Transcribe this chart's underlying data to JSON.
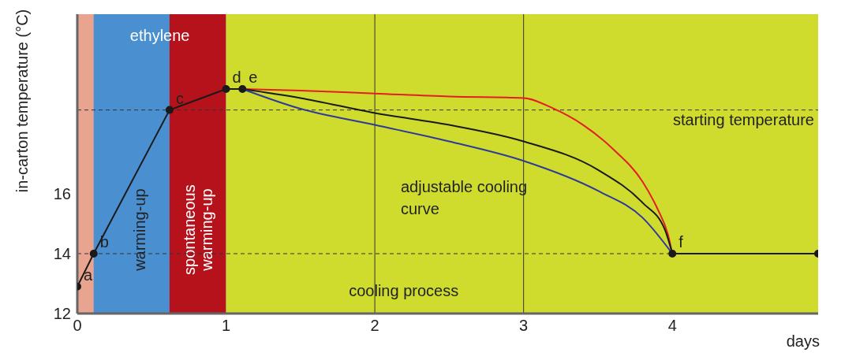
{
  "chart_data": {
    "type": "line",
    "xlabel": "days",
    "ylabel": "in-carton temperature (°C)",
    "xlim": [
      0,
      4.98
    ],
    "xticks": [
      0,
      1,
      2,
      3,
      4
    ],
    "ylim": [
      12,
      22
    ],
    "yticks": [
      12,
      14,
      16
    ],
    "series": [
      {
        "color": "#1a1a1a",
        "marker": "circle",
        "x": [
          0,
          0.11,
          0.62,
          1.0,
          1.11
        ],
        "values": [
          12.9,
          14.0,
          18.8,
          19.5,
          19.5
        ]
      },
      {
        "color": "#e31e24",
        "marker": "none",
        "x": [
          1.11,
          1.5,
          2,
          2.5,
          3,
          3.2,
          3.4,
          3.6,
          3.8,
          3.9,
          3.97,
          4.0
        ],
        "values": [
          19.5,
          19.45,
          19.35,
          19.25,
          19.2,
          18.85,
          18.3,
          17.5,
          16.4,
          15.5,
          14.65,
          14.0
        ]
      },
      {
        "color": "#1a1a1a",
        "marker": "none",
        "x": [
          1.11,
          1.5,
          2,
          2.5,
          3,
          3.5,
          3.8,
          3.95,
          4.0
        ],
        "values": [
          19.5,
          19.2,
          18.7,
          18.3,
          17.75,
          16.8,
          15.7,
          14.8,
          14.0
        ]
      },
      {
        "color": "#2e3a9a",
        "marker": "none",
        "x": [
          1.11,
          1.5,
          2,
          2.5,
          3,
          3.5,
          3.8,
          4.0
        ],
        "values": [
          19.5,
          18.84,
          18.3,
          17.75,
          17.1,
          16.1,
          15.2,
          14.0
        ]
      },
      {
        "color": "#1a1a1a",
        "marker": "circle",
        "x": [
          4.0,
          4.98
        ],
        "values": [
          14.0,
          14.0
        ]
      }
    ],
    "bands": [
      {
        "axis": "x",
        "from": 0,
        "to": 0.62,
        "label": "warming-up",
        "color": "#e8a48e"
      },
      {
        "axis": "x",
        "from": 0.11,
        "to": 1.0,
        "label": "ethylene",
        "color": "#4a8fd0"
      },
      {
        "axis": "x",
        "from": 0.62,
        "to": 1.0,
        "label": "spontaneous warming-up",
        "color": "#b5121b"
      },
      {
        "axis": "x",
        "from": 1.0,
        "to": 4.98,
        "label": "cooling process",
        "color": "#cfdc2e"
      }
    ],
    "ref_lines": [
      {
        "axis": "y",
        "value": 18.8,
        "label": "starting temperature",
        "line_style": "dashed"
      },
      {
        "axis": "y",
        "value": 14,
        "line_style": "dashed"
      },
      {
        "axis": "x",
        "value": 2,
        "line_style": "solid"
      },
      {
        "axis": "x",
        "value": 3,
        "line_style": "solid"
      }
    ],
    "annotations": [
      {
        "text": "a",
        "x": 0,
        "y": 12.9
      },
      {
        "text": "b",
        "x": 0.11,
        "y": 14.0
      },
      {
        "text": "c",
        "x": 0.62,
        "y": 18.8
      },
      {
        "text": "d",
        "x": 1.0,
        "y": 19.5
      },
      {
        "text": "e",
        "x": 1.11,
        "y": 19.5
      },
      {
        "text": "f",
        "x": 4.0,
        "y": 14.0
      },
      "adjustable cooling curve"
    ],
    "grid": false
  }
}
